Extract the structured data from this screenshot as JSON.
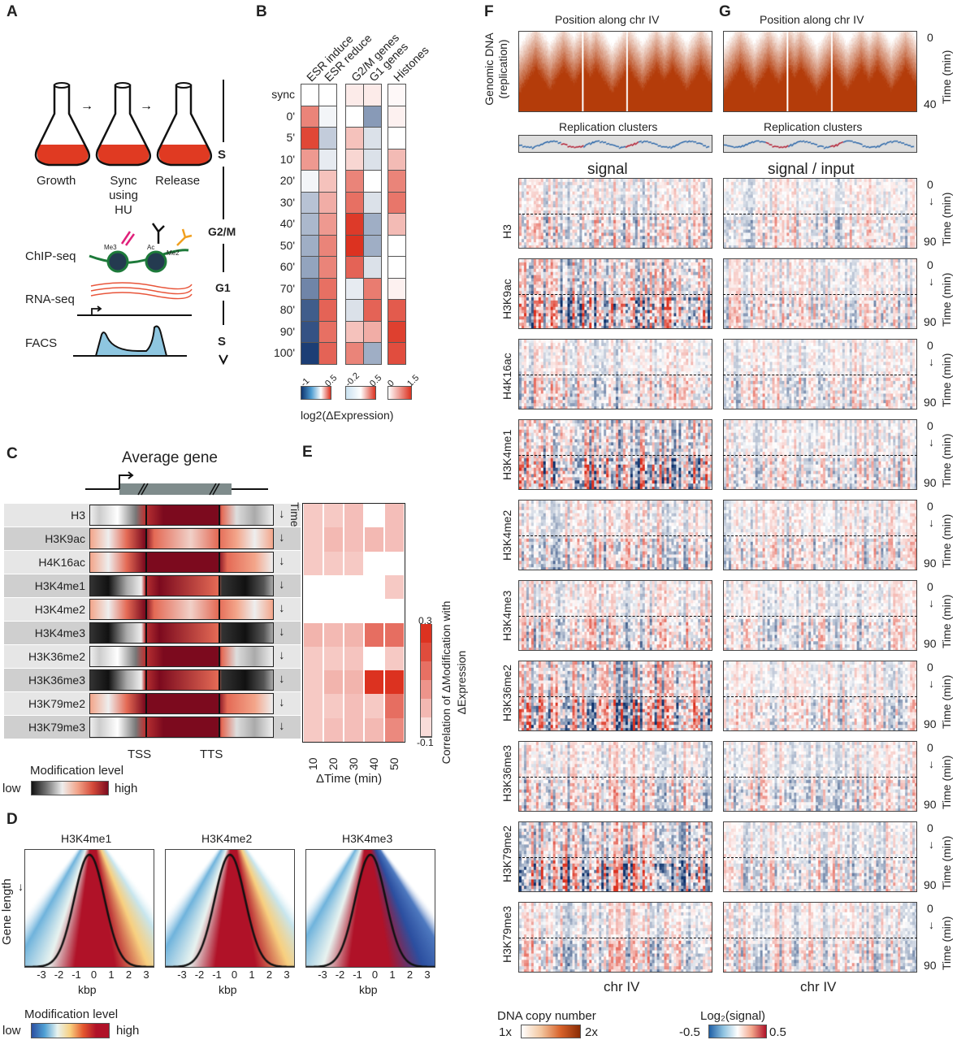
{
  "panel_labels": [
    "A",
    "B",
    "C",
    "D",
    "E",
    "F",
    "G"
  ],
  "panelA": {
    "flasks": [
      "Growth",
      "Sync using HU",
      "Release"
    ],
    "assays": [
      "ChIP-seq",
      "RNA-seq",
      "FACS"
    ],
    "marks": [
      "Me3",
      "Ac",
      "Me2"
    ],
    "phases": [
      "S",
      "G2/M",
      "G1",
      "S"
    ],
    "colors": {
      "culture": "#e03a22",
      "facs": "#8ec6e0",
      "dna": "#1d7a3a",
      "rna": "#e8553a"
    }
  },
  "panelB": {
    "columns": [
      "ESR induce",
      "ESR reduce",
      "G2/M genes",
      "G1 genes",
      "Histones"
    ],
    "rows": [
      "sync",
      "0'",
      "5'",
      "10'",
      "20'",
      "30'",
      "40'",
      "50'",
      "60'",
      "70'",
      "80'",
      "90'",
      "100'"
    ],
    "values": [
      [
        0,
        0.3,
        0.45,
        0.25,
        -0.05,
        -0.3,
        -0.35,
        -0.4,
        -0.45,
        -0.6,
        -0.8,
        -0.85,
        -0.95
      ],
      [
        0,
        -0.05,
        -0.25,
        -0.1,
        0.15,
        0.2,
        0.25,
        0.3,
        0.3,
        0.35,
        0.38,
        0.35,
        0.38
      ],
      [
        0.05,
        0,
        0.15,
        0.1,
        0.3,
        0.35,
        0.48,
        0.5,
        0.38,
        -0.02,
        -0.03,
        0.15,
        0.3
      ],
      [
        0.05,
        -0.1,
        -0.03,
        -0.03,
        0,
        -0.03,
        -0.08,
        -0.08,
        -0.03,
        0.32,
        0.38,
        0.2,
        -0.08
      ],
      [
        0.05,
        0.1,
        0,
        0.5,
        0.9,
        1.0,
        0.5,
        0,
        0,
        0.1,
        1.2,
        1.4,
        1.3
      ]
    ],
    "scales": [
      {
        "min": "-1",
        "max": "0.5",
        "lo": -1,
        "hi": 0.5
      },
      {
        "min": "-0.2",
        "max": "0.5",
        "lo": -0.2,
        "hi": 0.5
      },
      {
        "min": "0",
        "max": "1.5",
        "lo": 0,
        "hi": 1.5
      }
    ],
    "colorbar_label": "log2(ΔExpression)"
  },
  "panelC": {
    "title": "Average gene",
    "rows": [
      "H3",
      "H3K9ac",
      "H4K16ac",
      "H3K4me1",
      "H3K4me2",
      "H3K4me3",
      "H3K36me2",
      "H3K36me3",
      "H3K79me2",
      "H3K79me3"
    ],
    "time_label": "Time",
    "xticks": [
      "TSS",
      "TTS"
    ],
    "legend_title": "Modification level",
    "low": "low",
    "high": "high"
  },
  "chart_data": [
    {
      "type": "heatmap",
      "title": "",
      "rows": [
        "H3",
        "H3K9ac",
        "H4K16ac",
        "H3K4me1",
        "H3K4me2",
        "H3K4me3",
        "H3K36me2",
        "H3K36me3",
        "H3K79me2",
        "H3K79me3"
      ],
      "categories": [
        "10",
        "20",
        "30",
        "40",
        "50"
      ],
      "xlabel": "ΔTime (min)",
      "colorbar_label": "Correlation of ΔModification with ΔExpression",
      "clim": [
        -0.1,
        0.3
      ],
      "clim_labels": [
        "-0.1",
        "0.3"
      ],
      "values": [
        [
          0,
          0,
          0.02,
          -0.1,
          0.02
        ],
        [
          0,
          0.03,
          0.02,
          0.03,
          0.02
        ],
        [
          0,
          0,
          0,
          -0.1,
          -0.1
        ],
        [
          -0.1,
          -0.1,
          -0.1,
          -0.1,
          0
        ],
        [
          -0.1,
          -0.1,
          -0.1,
          -0.1,
          -0.1
        ],
        [
          0.04,
          0.03,
          0.04,
          0.17,
          0.17
        ],
        [
          0,
          0,
          0.01,
          -0.1,
          0
        ],
        [
          0,
          0.04,
          0.04,
          0.3,
          0.3
        ],
        [
          0,
          0,
          0.02,
          0,
          0.17
        ],
        [
          0,
          0.02,
          0.02,
          0.03,
          0.12
        ]
      ]
    }
  ],
  "panelD": {
    "titles": [
      "H3K4me1",
      "H3K4me2",
      "H3K4me3"
    ],
    "xticks": [
      "-3",
      "-2",
      "-1",
      "0",
      "1",
      "2",
      "3"
    ],
    "xlabel": "kbp",
    "ylabel": "Gene length",
    "legend_title": "Modification level",
    "low": "low",
    "high": "high"
  },
  "panelFG": {
    "top_title": "Position along chr IV",
    "dna_ylabel": "Genomic DNA (replication)",
    "clusters": "Replication clusters",
    "signal_title": "signal",
    "ratio_title": "signal / input",
    "marks": [
      "H3",
      "H3K9ac",
      "H4K16ac",
      "H3K4me1",
      "H3K4me2",
      "H3K4me3",
      "H3K36me2",
      "H3K36me3",
      "H3K79me2",
      "H3K79me3"
    ],
    "time_label": "Time (min)",
    "time_start": "0",
    "time_end": "90",
    "dna_time_end": "40",
    "xlabel": "chr IV",
    "legend1": {
      "title": "DNA copy number",
      "min": "1x",
      "max": "2x"
    },
    "legend2": {
      "title": "Log₂(signal)",
      "min": "-0.5",
      "max": "0.5"
    }
  }
}
